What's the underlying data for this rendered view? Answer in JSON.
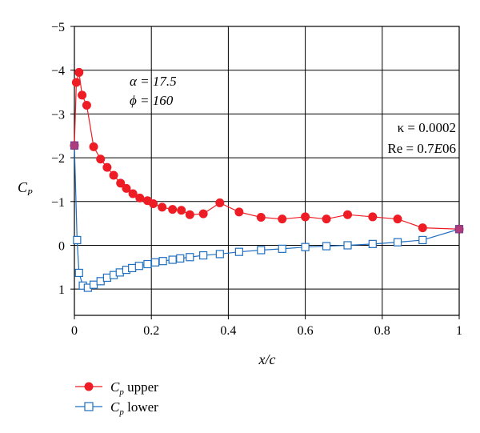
{
  "chart_data": {
    "type": "line",
    "xlabel": "x/c",
    "ylabel": "C_P",
    "xlim": [
      0,
      1
    ],
    "ylim": [
      -5,
      1.6
    ],
    "y_inverted": true,
    "grid": true,
    "x_ticks": [
      "0",
      "0.2",
      "0.4",
      "0.6",
      "0.8",
      "1"
    ],
    "x_tick_values": [
      0,
      0.2,
      0.4,
      0.6,
      0.8,
      1
    ],
    "y_ticks": [
      "−5",
      "−4",
      "−3",
      "−2",
      "−1",
      "0",
      "1"
    ],
    "y_tick_values": [
      -5,
      -4,
      -3,
      -2,
      -1,
      0,
      1
    ],
    "annotations": [
      {
        "text": "α = 17.5",
        "position": "upper-left"
      },
      {
        "text": "ϕ = 160",
        "position": "upper-left"
      },
      {
        "text": "κ = 0.0002",
        "position": "right"
      },
      {
        "text": "Re = 0.7E06",
        "position": "right"
      }
    ],
    "legend_placement": "bottom-left",
    "series": [
      {
        "name": "C_P upper",
        "color": "#ee1c24",
        "marker": "filled-circle",
        "x": [
          0.0,
          0.005,
          0.012,
          0.02,
          0.032,
          0.05,
          0.068,
          0.085,
          0.102,
          0.12,
          0.135,
          0.152,
          0.17,
          0.19,
          0.205,
          0.228,
          0.255,
          0.278,
          0.3,
          0.335,
          0.378,
          0.428,
          0.485,
          0.54,
          0.6,
          0.655,
          0.71,
          0.775,
          0.84,
          0.905,
          1.0
        ],
        "y": [
          -2.28,
          -3.72,
          -3.95,
          -3.43,
          -3.2,
          -2.25,
          -1.97,
          -1.78,
          -1.6,
          -1.42,
          -1.3,
          -1.18,
          -1.08,
          -1.02,
          -0.95,
          -0.87,
          -0.82,
          -0.8,
          -0.7,
          -0.72,
          -0.97,
          -0.76,
          -0.64,
          -0.6,
          -0.65,
          -0.6,
          -0.7,
          -0.65,
          -0.6,
          -0.4,
          -0.37
        ]
      },
      {
        "name": "C_p lower",
        "color": "#1f6fc1",
        "marker": "open-square",
        "x": [
          0.0,
          0.007,
          0.012,
          0.022,
          0.035,
          0.05,
          0.068,
          0.085,
          0.102,
          0.118,
          0.135,
          0.15,
          0.168,
          0.19,
          0.21,
          0.23,
          0.255,
          0.275,
          0.3,
          0.335,
          0.378,
          0.428,
          0.485,
          0.54,
          0.6,
          0.655,
          0.71,
          0.775,
          0.84,
          0.905,
          1.0
        ],
        "y": [
          -2.28,
          -0.12,
          0.63,
          0.92,
          0.97,
          0.9,
          0.82,
          0.74,
          0.68,
          0.62,
          0.56,
          0.52,
          0.47,
          0.43,
          0.39,
          0.36,
          0.33,
          0.3,
          0.27,
          0.23,
          0.2,
          0.15,
          0.11,
          0.08,
          0.04,
          0.02,
          0.0,
          -0.03,
          -0.07,
          -0.12,
          -0.37
        ]
      }
    ]
  },
  "legend": {
    "upper_symbol": "C",
    "upper_sub": "p",
    "upper_rest": " upper",
    "lower_symbol": "C",
    "lower_sub": "p",
    "lower_rest": " lower"
  },
  "labels": {
    "y_symbol": "C",
    "y_sub": "P",
    "x_label": "x/c",
    "alpha_line": "α = 17.5",
    "phi_line": "ϕ = 160",
    "kappa_line": "κ = 0.0002",
    "re_prefix": "Re = 0.7",
    "re_italic": "E",
    "re_suffix": "06"
  }
}
